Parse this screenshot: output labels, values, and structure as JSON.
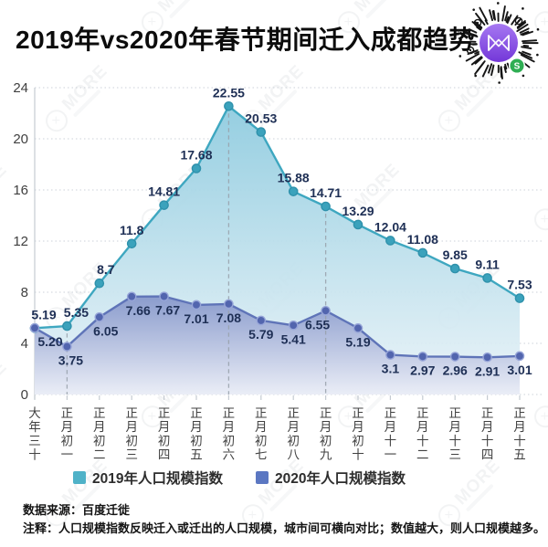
{
  "title": "2019年vs2020年春节期间迁入成都趋势",
  "watermark": {
    "text": "MORE"
  },
  "qr": {
    "purple_top": "#a678f2",
    "purple_bottom": "#7337d8",
    "badge_green": "#2fae53",
    "badge_glyph": "S",
    "ray_color": "#151515"
  },
  "chart_data": {
    "type": "area",
    "title": "2019年vs2020年春节期间迁入成都趋势",
    "xlabel": "",
    "ylabel": "",
    "ylim": [
      0,
      24
    ],
    "yticks": [
      0,
      4,
      8,
      12,
      16,
      20,
      24
    ],
    "grid": "dotted-horizontal",
    "legend_position": "bottom",
    "categories": [
      "大年三十",
      "正月初一",
      "正月初二",
      "正月初三",
      "正月初四",
      "正月初五",
      "正月初六",
      "正月初七",
      "正月初八",
      "正月初九",
      "正月初十",
      "正月十一",
      "正月十二",
      "正月十三",
      "正月十四",
      "正月十五"
    ],
    "guide_indices": [
      1,
      6,
      9
    ],
    "series": [
      {
        "name": "2019年人口规模指数",
        "values": [
          5.19,
          5.35,
          8.7,
          11.8,
          14.81,
          17.68,
          22.55,
          20.53,
          15.88,
          14.71,
          13.29,
          12.04,
          11.08,
          9.85,
          9.11,
          7.53
        ],
        "labels": [
          "5.19",
          "5.35",
          "8.7",
          "11.8",
          "14.81",
          "17.68",
          "22.55",
          "20.53",
          "15.88",
          "14.71",
          "13.29",
          "12.04",
          "11.08",
          "9.85",
          "9.11",
          "7.53"
        ],
        "color": "#3ea7c0",
        "marker_fill": "#3ba2bc",
        "marker_stroke": "#2f91ab",
        "fill_top": "#8ecbdf",
        "fill_bottom": "#eaf3f8"
      },
      {
        "name": "2020年人口规模指数",
        "values": [
          5.2,
          3.75,
          6.05,
          7.66,
          7.67,
          7.01,
          7.08,
          5.79,
          5.41,
          6.55,
          5.19,
          3.1,
          2.97,
          2.96,
          2.91,
          3.01
        ],
        "labels": [
          "5.20",
          "3.75",
          "6.05",
          "7.66",
          "7.67",
          "7.01",
          "7.08",
          "5.79",
          "5.41",
          "6.55",
          "5.19",
          "3.1",
          "2.97",
          "2.96",
          "2.91",
          "3.01"
        ],
        "color": "#5f74b8",
        "marker_fill": "#5265ae",
        "marker_stroke": "#97a5d8",
        "fill_top": "#7d8ec6",
        "fill_bottom": "#eef0f8"
      }
    ],
    "style": {
      "axis_color": "#c5cbd2",
      "grid_color": "#ccd2d9",
      "guide_color": "#98a1ab",
      "tick_label_color": "#3f3f3f",
      "value_label_color": "#1e2f55",
      "x_label_color": "#414141"
    }
  },
  "legend": {
    "items": [
      {
        "label": "2019年人口规模指数",
        "color": "#4fb2c8"
      },
      {
        "label": "2020年人口规模指数",
        "color": "#5b77c2"
      }
    ]
  },
  "footer": {
    "source": "数据来源：百度迁徙",
    "note": "注释：人口规模指数反映迁入或迁出的人口规模，城市间可横向对比；数值越大，则人口规模越多。"
  }
}
